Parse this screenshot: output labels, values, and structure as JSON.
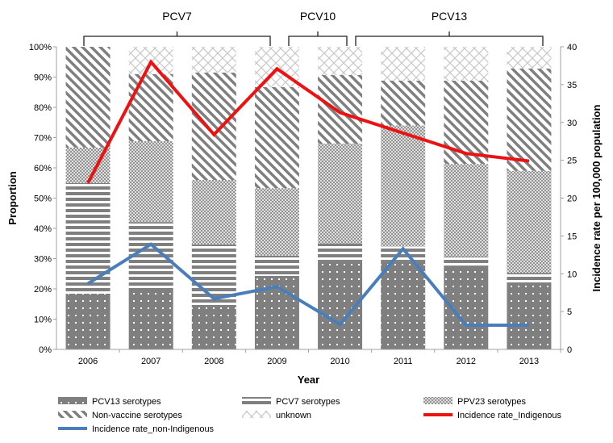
{
  "chart_data": {
    "type": "bar",
    "subtype": "stacked-bar-with-lines",
    "xlabel": "Year",
    "ylabel": "Proportion",
    "y2label": "Incidence rate per 100,000 population",
    "categories": [
      "2006",
      "2007",
      "2008",
      "2009",
      "2010",
      "2011",
      "2012",
      "2013"
    ],
    "ylim": [
      0,
      100
    ],
    "y_ticks": [
      "0%",
      "10%",
      "20%",
      "30%",
      "40%",
      "50%",
      "60%",
      "70%",
      "80%",
      "90%",
      "100%"
    ],
    "y2lim": [
      0,
      40
    ],
    "y2_ticks": [
      "0",
      "5",
      "10",
      "15",
      "20",
      "25",
      "30",
      "35",
      "40"
    ],
    "bar_series": [
      {
        "name": "PCV13 serotypes",
        "pattern": "dots",
        "values": [
          18.4,
          20,
          14.7,
          24.3,
          29.3,
          29.3,
          27.5,
          22
        ]
      },
      {
        "name": "PCV7 serotypes",
        "pattern": "hstripes",
        "values": [
          36.6,
          22,
          20,
          6.7,
          5.7,
          4.7,
          3.2,
          3.3
        ]
      },
      {
        "name": "PPV23 serotypes",
        "pattern": "smallcheck",
        "values": [
          11.7,
          26.8,
          21.3,
          22.3,
          33,
          40,
          30.6,
          33.7
        ]
      },
      {
        "name": "Non-vaccine serotypes",
        "pattern": "diagonal",
        "values": [
          33.3,
          22.2,
          35.5,
          33.4,
          22.7,
          14.8,
          27.5,
          33.8
        ]
      },
      {
        "name": "unknown",
        "pattern": "diamonds",
        "values": [
          0,
          9,
          8.5,
          13.3,
          9.3,
          11.2,
          11.2,
          7.2
        ]
      }
    ],
    "line_series": [
      {
        "name": "Incidence rate_Indigenous",
        "color": "#ee1111",
        "axis": "right",
        "values": [
          22.0,
          38.0,
          28.4,
          37.1,
          31.3,
          28.6,
          25.9,
          24.9
        ]
      },
      {
        "name": "Incidence rate_non-Indigenous",
        "color": "#4a7ebb",
        "axis": "right",
        "values": [
          8.7,
          13.9,
          6.7,
          8.3,
          3.3,
          13.3,
          3.2,
          3.2
        ]
      }
    ],
    "annotations": [
      {
        "label": "PCV7",
        "from": "2006",
        "to": "2009"
      },
      {
        "label": "PCV10",
        "from": "2009",
        "to": "2010"
      },
      {
        "label": "PCV13",
        "from": "2010",
        "to": "2013"
      }
    ],
    "legend_placement": "bottom",
    "grid": false
  }
}
